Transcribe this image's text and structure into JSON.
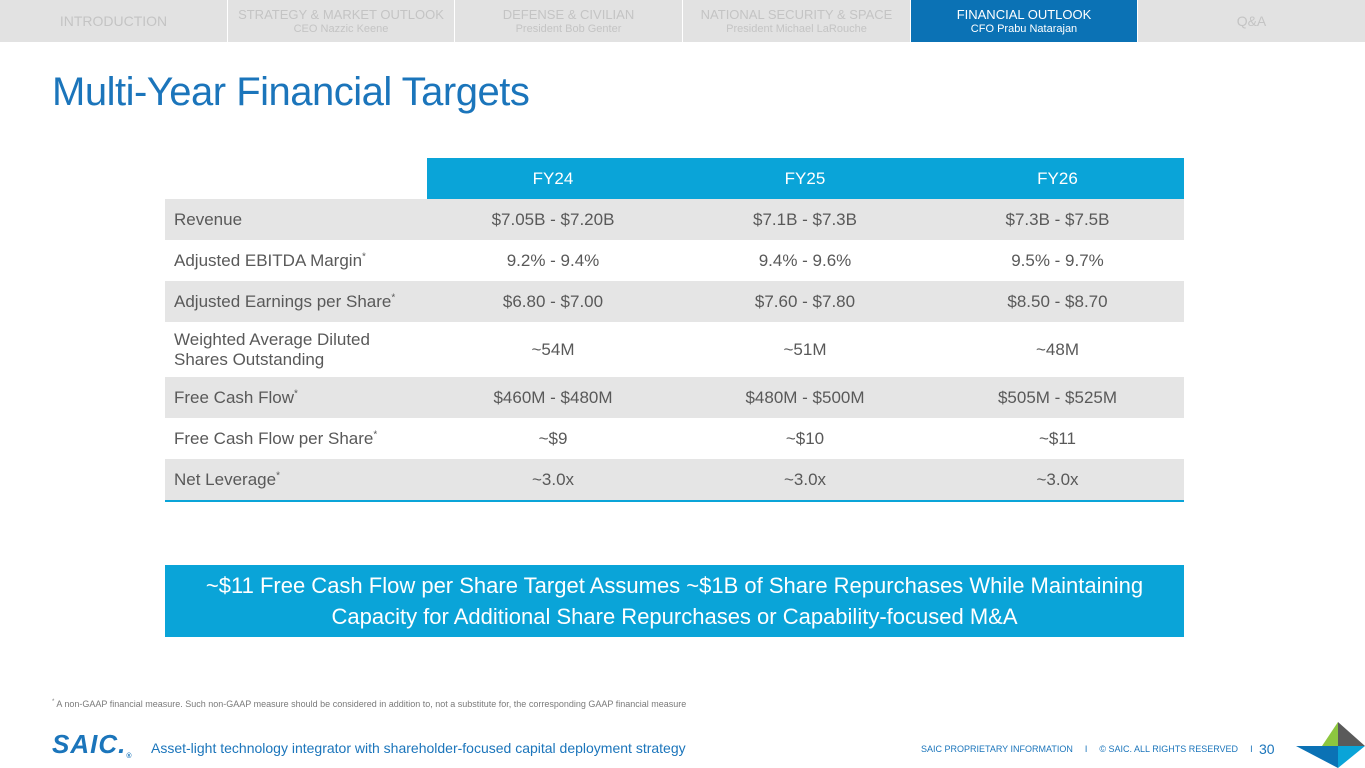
{
  "nav": {
    "tabs": [
      {
        "title": "INTRODUCTION",
        "subtitle": ""
      },
      {
        "title": "STRATEGY & MARKET OUTLOOK",
        "subtitle": "CEO Nazzic Keene"
      },
      {
        "title": "DEFENSE & CIVILIAN",
        "subtitle": "President Bob Genter"
      },
      {
        "title": "NATIONAL SECURITY & SPACE",
        "subtitle": "President Michael LaRouche"
      },
      {
        "title": "FINANCIAL OUTLOOK",
        "subtitle": "CFO Prabu Natarajan"
      },
      {
        "title": "Q&A",
        "subtitle": ""
      }
    ]
  },
  "title": "Multi-Year Financial Targets",
  "table": {
    "headers": [
      "FY24",
      "FY25",
      "FY26"
    ],
    "rows": [
      {
        "label": "Revenue",
        "mark": "",
        "values": [
          "$7.05B - $7.20B",
          "$7.1B - $7.3B",
          "$7.3B - $7.5B"
        ]
      },
      {
        "label": "Adjusted EBITDA Margin",
        "mark": "*",
        "values": [
          "9.2% - 9.4%",
          "9.4% - 9.6%",
          "9.5% - 9.7%"
        ]
      },
      {
        "label": "Adjusted Earnings per Share",
        "mark": "*",
        "values": [
          "$6.80 - $7.00",
          "$7.60 - $7.80",
          "$8.50 - $8.70"
        ]
      },
      {
        "label_line1": "Weighted Average Diluted",
        "label_line2": "Shares Outstanding",
        "values": [
          "~54M",
          "~51M",
          "~48M"
        ]
      },
      {
        "label": "Free Cash Flow",
        "mark": "*",
        "values": [
          "$460M - $480M",
          "$480M - $500M",
          "$505M - $525M"
        ]
      },
      {
        "label": "Free Cash Flow per Share",
        "mark": "*",
        "values": [
          "~$9",
          "~$10",
          "~$11"
        ]
      },
      {
        "label": "Net Leverage",
        "mark": "*",
        "values": [
          "~3.0x",
          "~3.0x",
          "~3.0x"
        ]
      }
    ]
  },
  "callout": {
    "line1": "~$11 Free Cash Flow per Share Target Assumes ~$1B of Share Repurchases While Maintaining",
    "line2": "Capacity for Additional Share Repurchases or Capability-focused M&A"
  },
  "footnote": {
    "mark": "*",
    "text": "A non-GAAP financial measure. Such non-GAAP measure should be considered in addition to, not a substitute for, the corresponding GAAP financial measure"
  },
  "footer": {
    "logo": "SAIC.",
    "logo_mark": "®",
    "tagline": "Asset-light technology integrator with shareholder-focused capital deployment strategy",
    "proprietary": "SAIC PROPRIETARY INFORMATION",
    "separator": "I",
    "copyright": "© SAIC. ALL RIGHTS RESERVED",
    "page_number": "30"
  },
  "colors": {
    "brand_blue": "#1b75bb",
    "accent_cyan": "#0aa4d8",
    "active_tab": "#0b72b5",
    "corner_green": "#8dc63f"
  }
}
